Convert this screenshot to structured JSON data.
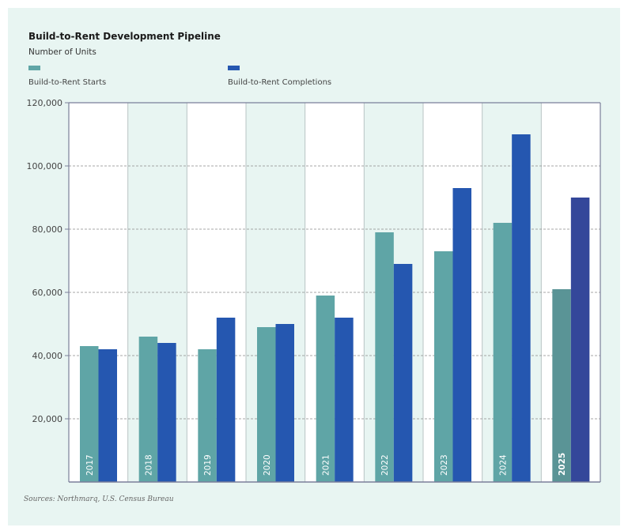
{
  "chart_data": {
    "type": "bar",
    "title": "Build-to-Rent Development Pipeline",
    "subtitle": "Number of Units",
    "categories": [
      "2017",
      "2018",
      "2019",
      "2020",
      "2021",
      "2022",
      "2023",
      "2024",
      "2025"
    ],
    "series": [
      {
        "name": "Build-to-Rent Starts",
        "color": "#5fa5a6",
        "values": [
          43000,
          46000,
          42000,
          49000,
          59000,
          79000,
          73000,
          82000,
          61000
        ]
      },
      {
        "name": "Build-to-Rent Completions",
        "color": "#2557b0",
        "values": [
          42000,
          44000,
          52000,
          50000,
          52000,
          69000,
          93000,
          110000,
          90000
        ]
      }
    ],
    "highlight_category": "2025",
    "highlight_colors": [
      "#5a9496",
      "#34479a"
    ],
    "ylim": [
      0,
      120000
    ],
    "yticks": [
      "20,000",
      "40,000",
      "60,000",
      "80,000",
      "100,000",
      "120,000"
    ],
    "ytick_values": [
      20000,
      40000,
      60000,
      80000,
      100000,
      120000
    ],
    "grid": "horizontal dashed",
    "legend_placement": "top-left",
    "source": "Sources: Northmarq, U.S. Census Bureau"
  }
}
